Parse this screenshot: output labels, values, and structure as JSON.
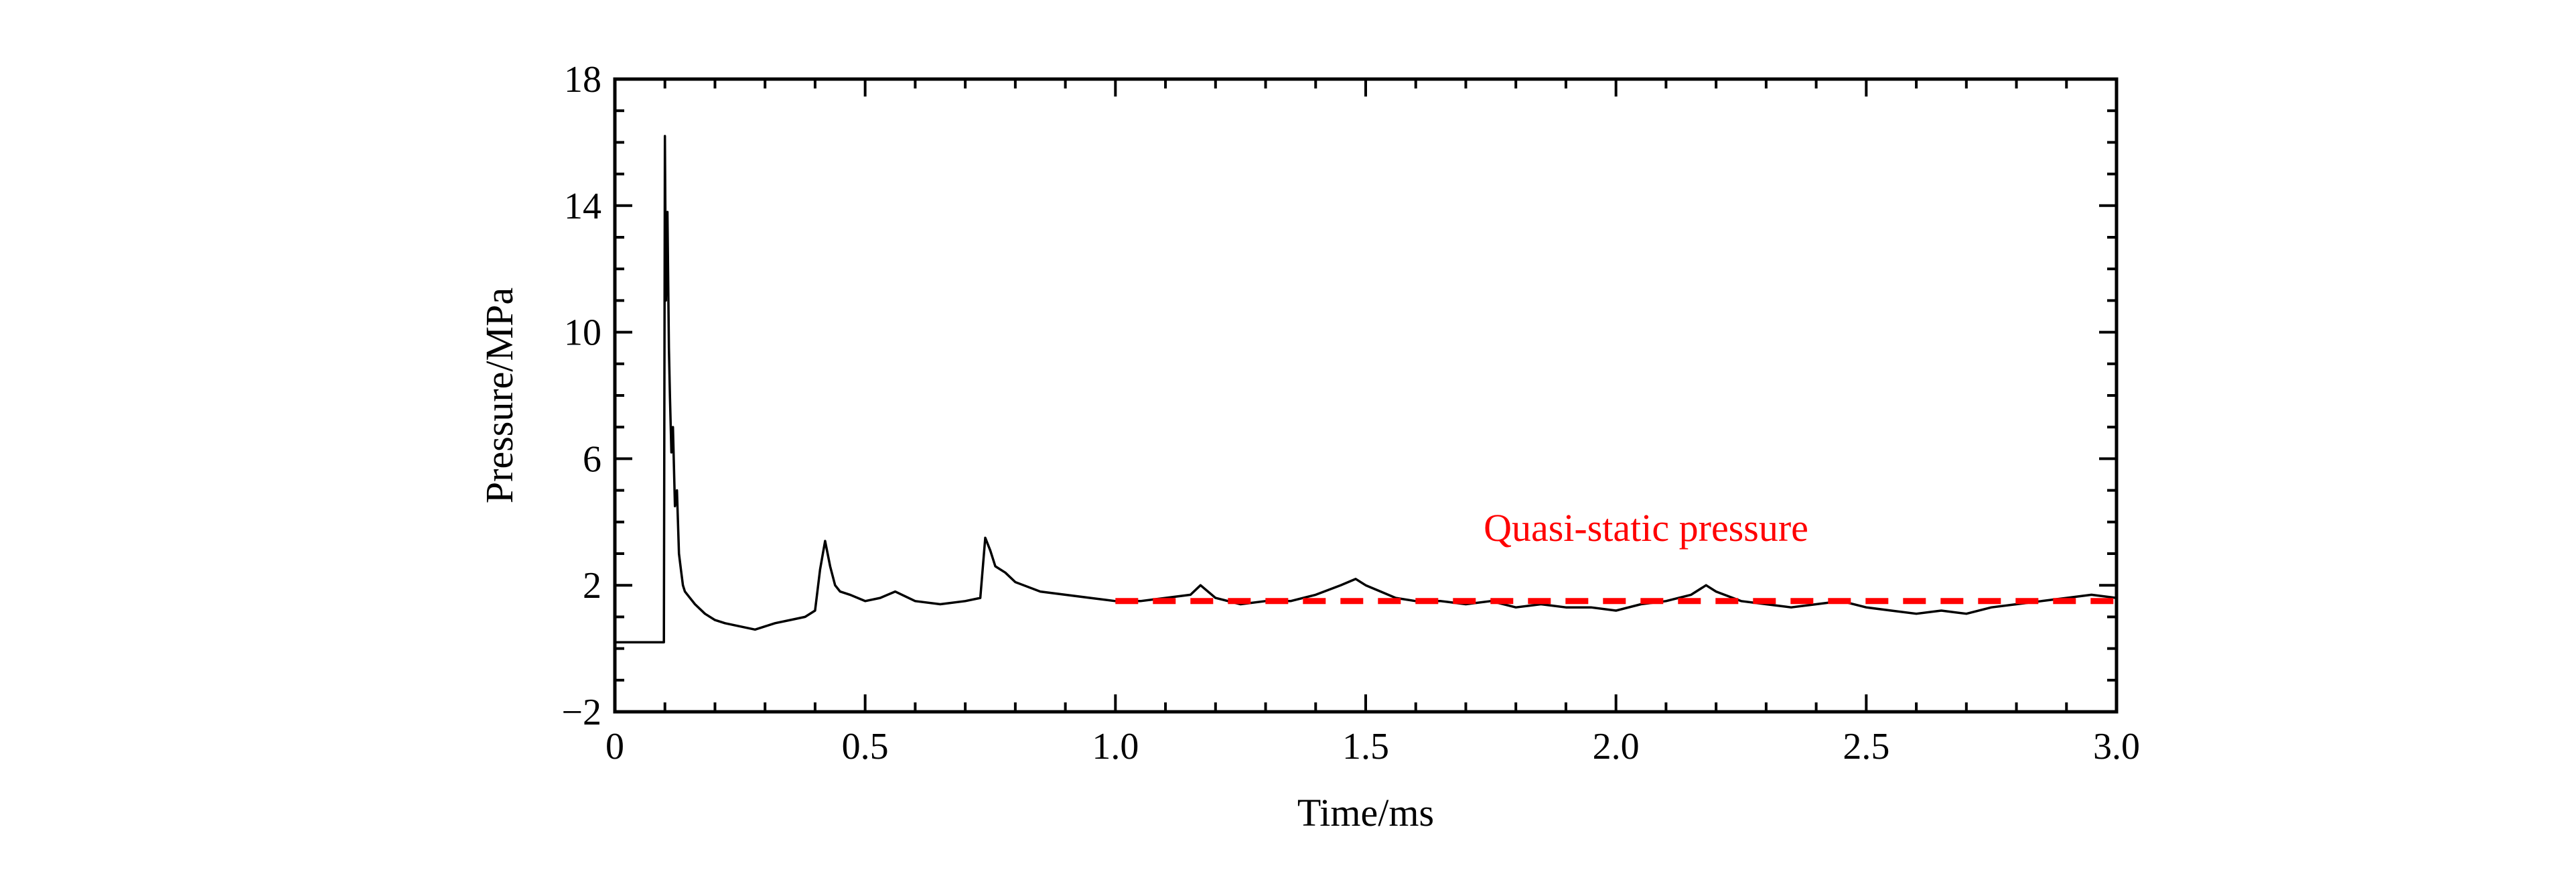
{
  "chart_data": {
    "type": "line",
    "title": "",
    "xlabel": "Time/ms",
    "ylabel": "Pressure/MPa",
    "xlim": [
      0,
      3.0
    ],
    "ylim": [
      -2,
      18
    ],
    "x_ticks": [
      0,
      0.5,
      1.0,
      1.5,
      2.0,
      2.5,
      3.0
    ],
    "x_tick_labels": [
      "0",
      "0.5",
      "1.0",
      "1.5",
      "2.0",
      "2.5",
      "3.0"
    ],
    "y_ticks": [
      -2,
      2,
      6,
      10,
      14,
      18
    ],
    "y_tick_labels": [
      "−2",
      "2",
      "6",
      "10",
      "14",
      "18"
    ],
    "grid": false,
    "series": [
      {
        "color": "#000000",
        "style": "solid",
        "x": [
          0,
          0.095,
          0.098,
          0.1,
          0.102,
          0.105,
          0.108,
          0.11,
          0.113,
          0.116,
          0.12,
          0.124,
          0.128,
          0.132,
          0.136,
          0.14,
          0.15,
          0.16,
          0.18,
          0.2,
          0.22,
          0.25,
          0.28,
          0.3,
          0.32,
          0.35,
          0.38,
          0.4,
          0.41,
          0.42,
          0.43,
          0.44,
          0.45,
          0.47,
          0.5,
          0.53,
          0.56,
          0.6,
          0.65,
          0.7,
          0.73,
          0.74,
          0.75,
          0.76,
          0.78,
          0.8,
          0.85,
          0.9,
          0.95,
          1.0,
          1.05,
          1.1,
          1.15,
          1.17,
          1.2,
          1.25,
          1.3,
          1.35,
          1.4,
          1.45,
          1.48,
          1.5,
          1.53,
          1.56,
          1.6,
          1.65,
          1.7,
          1.75,
          1.8,
          1.85,
          1.9,
          1.95,
          2.0,
          2.05,
          2.1,
          2.15,
          2.18,
          2.2,
          2.25,
          2.3,
          2.35,
          2.4,
          2.45,
          2.5,
          2.55,
          2.6,
          2.65,
          2.7,
          2.75,
          2.8,
          2.85,
          2.9,
          2.95,
          3.0
        ],
        "y": [
          0.2,
          0.2,
          0.2,
          16.2,
          11.0,
          13.8,
          9.5,
          8.0,
          6.2,
          7.0,
          4.5,
          5.0,
          3.0,
          2.5,
          2.0,
          1.8,
          1.6,
          1.4,
          1.1,
          0.9,
          0.8,
          0.7,
          0.6,
          0.7,
          0.8,
          0.9,
          1.0,
          1.2,
          2.5,
          3.4,
          2.6,
          2.0,
          1.8,
          1.7,
          1.5,
          1.6,
          1.8,
          1.5,
          1.4,
          1.5,
          1.6,
          3.5,
          3.1,
          2.6,
          2.4,
          2.1,
          1.8,
          1.7,
          1.6,
          1.5,
          1.5,
          1.6,
          1.7,
          2.0,
          1.6,
          1.4,
          1.5,
          1.5,
          1.7,
          2.0,
          2.2,
          2.0,
          1.8,
          1.6,
          1.5,
          1.5,
          1.4,
          1.5,
          1.3,
          1.4,
          1.3,
          1.3,
          1.2,
          1.4,
          1.5,
          1.7,
          2.0,
          1.8,
          1.5,
          1.4,
          1.3,
          1.4,
          1.5,
          1.3,
          1.2,
          1.1,
          1.2,
          1.1,
          1.3,
          1.4,
          1.5,
          1.6,
          1.7,
          1.6
        ]
      },
      {
        "color": "#ff0000",
        "style": "dashed",
        "x": [
          1.0,
          3.0
        ],
        "y": [
          1.5,
          1.5
        ]
      }
    ],
    "annotations": [
      {
        "text": "Quasi-static pressure",
        "x": 2.06,
        "y": 3.4,
        "color": "#ff0000"
      }
    ]
  }
}
